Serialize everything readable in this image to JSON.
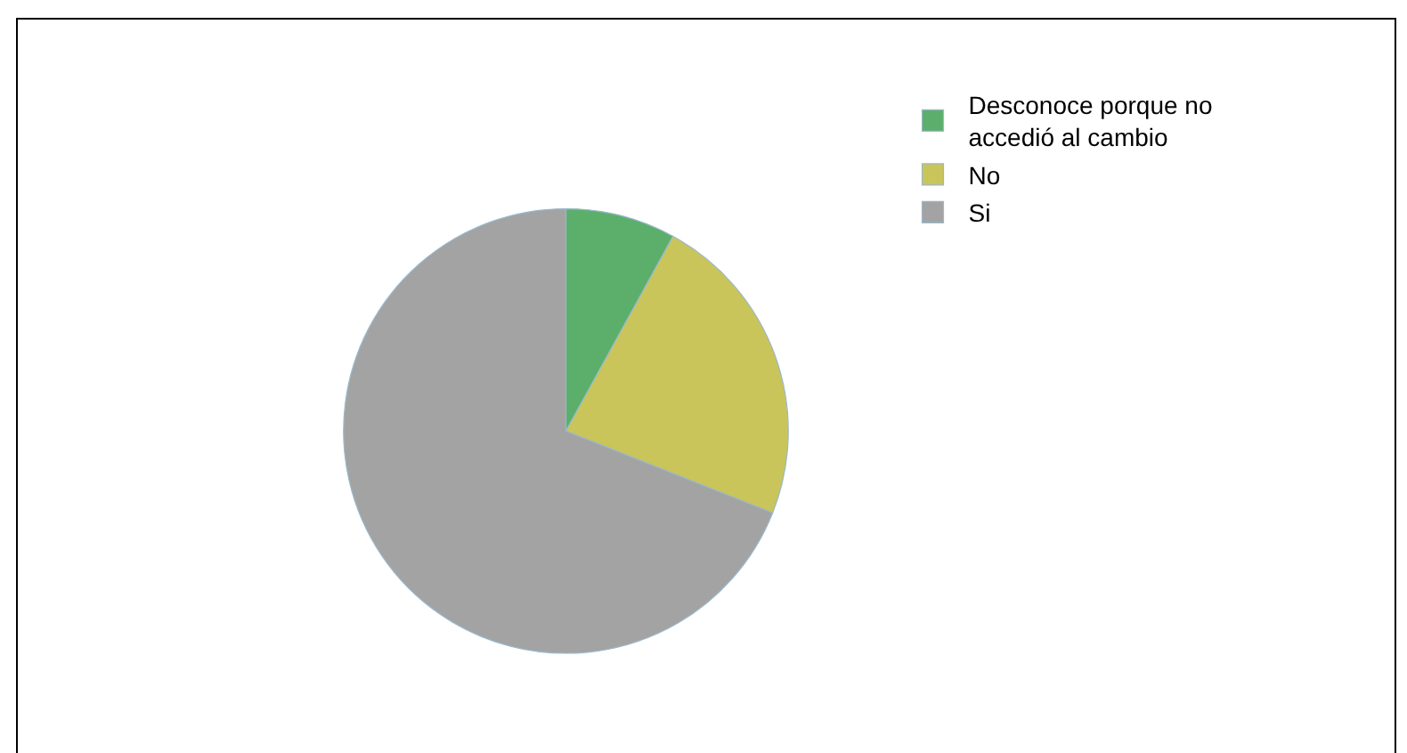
{
  "chart_data": {
    "type": "pie",
    "categories": [
      "Desconoce porque no accedió al cambio",
      "No",
      "Si"
    ],
    "values": [
      8,
      23,
      69
    ],
    "colors": [
      "#5caf6a",
      "#c9c55a",
      "#a3a3a3"
    ],
    "legend": "top right"
  }
}
